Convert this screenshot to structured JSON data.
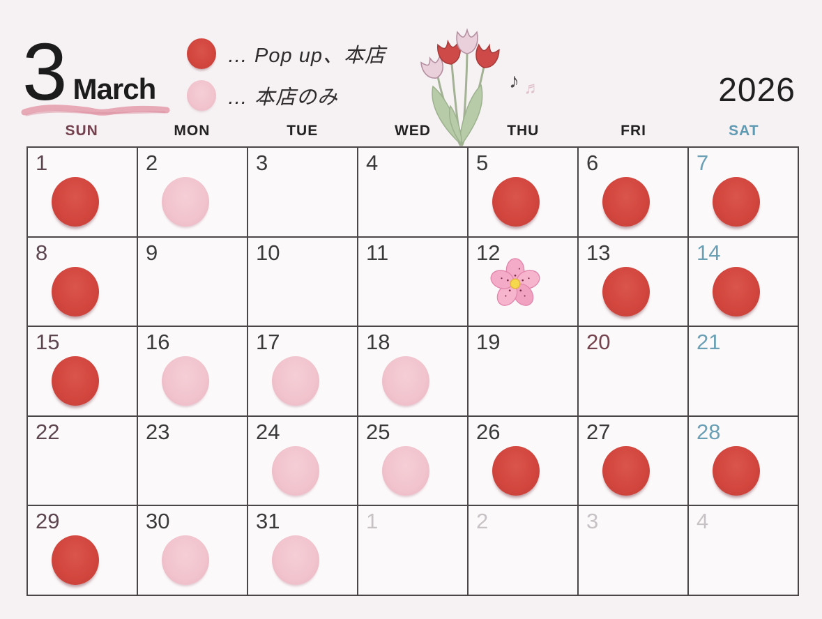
{
  "header": {
    "month_number": "3",
    "month_name": "March",
    "year": "2026",
    "legend": [
      {
        "icon": "red-dot-icon",
        "label": "… Pop up、本店"
      },
      {
        "icon": "pink-dot-icon",
        "label": "… 本店のみ"
      }
    ],
    "decorations": [
      "tulip-bouquet",
      "music-notes"
    ],
    "music_notes": {
      "note1": "♪",
      "note2": "♬"
    }
  },
  "weekdays": [
    {
      "label": "SUN",
      "cls": "sun"
    },
    {
      "label": "MON",
      "cls": ""
    },
    {
      "label": "TUE",
      "cls": ""
    },
    {
      "label": "WED",
      "cls": ""
    },
    {
      "label": "THU",
      "cls": ""
    },
    {
      "label": "FRI",
      "cls": ""
    },
    {
      "label": "SAT",
      "cls": "sat"
    }
  ],
  "legend_meaning": {
    "red": "Pop up、本店",
    "pink": "本店のみ"
  },
  "calendar": {
    "weeks": [
      [
        {
          "day": "1",
          "dot": "red",
          "cls": "sun"
        },
        {
          "day": "2",
          "dot": "pink",
          "cls": ""
        },
        {
          "day": "3",
          "dot": "none",
          "cls": ""
        },
        {
          "day": "4",
          "dot": "none",
          "cls": ""
        },
        {
          "day": "5",
          "dot": "red",
          "cls": ""
        },
        {
          "day": "6",
          "dot": "red",
          "cls": ""
        },
        {
          "day": "7",
          "dot": "red",
          "cls": "sat"
        }
      ],
      [
        {
          "day": "8",
          "dot": "red",
          "cls": "sun"
        },
        {
          "day": "9",
          "dot": "none",
          "cls": ""
        },
        {
          "day": "10",
          "dot": "none",
          "cls": ""
        },
        {
          "day": "11",
          "dot": "none",
          "cls": ""
        },
        {
          "day": "12",
          "dot": "blossom",
          "cls": ""
        },
        {
          "day": "13",
          "dot": "red",
          "cls": ""
        },
        {
          "day": "14",
          "dot": "red",
          "cls": "sat"
        }
      ],
      [
        {
          "day": "15",
          "dot": "red",
          "cls": "sun"
        },
        {
          "day": "16",
          "dot": "pink",
          "cls": ""
        },
        {
          "day": "17",
          "dot": "pink",
          "cls": ""
        },
        {
          "day": "18",
          "dot": "pink",
          "cls": ""
        },
        {
          "day": "19",
          "dot": "none",
          "cls": ""
        },
        {
          "day": "20",
          "dot": "none",
          "cls": "holiday"
        },
        {
          "day": "21",
          "dot": "none",
          "cls": "sat"
        }
      ],
      [
        {
          "day": "22",
          "dot": "none",
          "cls": "sun"
        },
        {
          "day": "23",
          "dot": "none",
          "cls": ""
        },
        {
          "day": "24",
          "dot": "pink",
          "cls": ""
        },
        {
          "day": "25",
          "dot": "pink",
          "cls": ""
        },
        {
          "day": "26",
          "dot": "red",
          "cls": ""
        },
        {
          "day": "27",
          "dot": "red",
          "cls": ""
        },
        {
          "day": "28",
          "dot": "red",
          "cls": "sat"
        }
      ],
      [
        {
          "day": "29",
          "dot": "red",
          "cls": "sun"
        },
        {
          "day": "30",
          "dot": "pink",
          "cls": ""
        },
        {
          "day": "31",
          "dot": "pink",
          "cls": ""
        },
        {
          "day": "1",
          "dot": "none",
          "cls": "nextmonth"
        },
        {
          "day": "2",
          "dot": "none",
          "cls": "nextmonth"
        },
        {
          "day": "3",
          "dot": "none",
          "cls": "nextmonth"
        },
        {
          "day": "4",
          "dot": "none",
          "cls": "nextmonth"
        }
      ]
    ]
  },
  "colors": {
    "red_dot": "#d2463e",
    "pink_dot": "#f1c3cd",
    "sunday_text": "#5d4650",
    "saturday_text": "#6aa0b6",
    "weekday_text": "#3a3a3a",
    "holiday_text": "#75434d",
    "next_month_text": "#c6c2c5",
    "underline_accent": "#e8a9b7",
    "grid_line": "#4a4547",
    "background": "#f6f1f3"
  }
}
